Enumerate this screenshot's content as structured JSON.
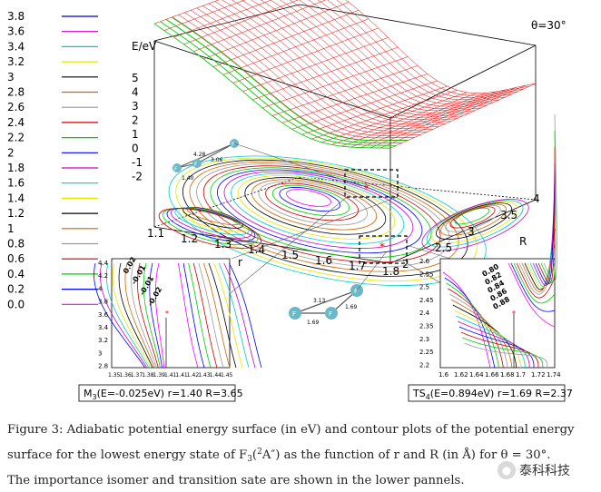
{
  "figure": {
    "legend": [
      "3.8",
      "3.6",
      "3.4",
      "3.2",
      "3",
      "2.8",
      "2.6",
      "2.4",
      "2.2",
      "2",
      "1.8",
      "1.6",
      "1.4",
      "1.2",
      "1",
      "0.8",
      "0.6",
      "0.4",
      "0.2",
      "0.0"
    ],
    "legend_colors": [
      "#0000cc",
      "#cc00cc",
      "#00cccc",
      "#e6e600",
      "#000000",
      "#cc6600",
      "#999999",
      "#cc0000",
      "#00cc00",
      "#0000ff",
      "#cc00cc",
      "#00cccc",
      "#e6e600",
      "#000000",
      "#cc6600",
      "#999999",
      "#cc0000",
      "#00cc00",
      "#0000ff",
      "#ff00ff"
    ],
    "energy_label": "E/eV",
    "energy_ticks": [
      "5",
      "4",
      "3",
      "2",
      "1",
      "0",
      "-1",
      "-2"
    ],
    "theta_label": "θ=30°",
    "r_label": "r",
    "R_label": "R",
    "r_ticks": [
      "1.1",
      "1.2",
      "1.3",
      "1.4",
      "1.5",
      "1.6",
      "1.7",
      "1.8"
    ],
    "R_ticks": [
      "2",
      "2.5",
      "3",
      "3.5",
      "4"
    ],
    "mol1": {
      "atom": "F",
      "d1": "4.28",
      "d2": "3.06",
      "d3": "1.40"
    },
    "mol2": {
      "atom": "F",
      "d1": "3.13",
      "d2": "1.69",
      "d3": "1.69"
    },
    "left_panel": {
      "y_ticks": [
        "4.4",
        "4.2",
        "4",
        "3.8",
        "3.6",
        "3.4",
        "3.2",
        "3",
        "2.8"
      ],
      "x_ticks": [
        "1.35",
        "1.36",
        "1.37",
        "1.38",
        "1.39",
        "1.41",
        "1.41",
        "1.42",
        "1.43",
        "1.44",
        "1.45"
      ],
      "contour_labels": [
        "0.02",
        "-0.01",
        "-0.01",
        "-0.02"
      ],
      "caption_pre": "M",
      "caption_sub": "3",
      "caption_post": "(E=-0.025eV) r=1.40 R=3.65"
    },
    "right_panel": {
      "y_ticks": [
        "2.6",
        "2.55",
        "2.5",
        "2.45",
        "2.4",
        "2.35",
        "2.3",
        "2.25",
        "2.2"
      ],
      "x_ticks": [
        "1.6",
        "1.62",
        "1.64",
        "1.66",
        "1.68",
        "1.7",
        "1.72",
        "1.74"
      ],
      "contour_labels": [
        "0.80",
        "0.82",
        "0.84",
        "0.86",
        "0.88"
      ],
      "caption_pre": "TS",
      "caption_sub": "4",
      "caption_post": "(E=0.894eV) r=1.69 R=2.37"
    }
  },
  "caption": {
    "line1": "Figure 3: Adiabatic potential energy surface (in eV) and contour plots of the potential energy",
    "line2_a": "surface for the lowest energy state of F",
    "line2_sub": "3",
    "line2_b": "(",
    "line2_sup": "2",
    "line2_c": "A″) as the function of r and R (in Å) for θ = 30°.",
    "line3": "The importance isomer and transition sate are shown in the lower pannels."
  },
  "watermark": {
    "text": "泰科科技"
  }
}
